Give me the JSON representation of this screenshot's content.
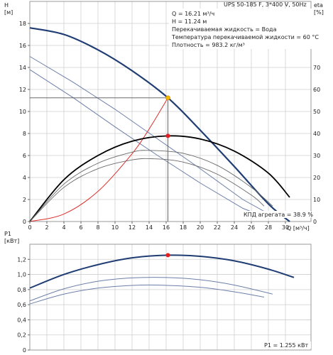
{
  "colors": {
    "pump_curve": "#1f3d73",
    "reduced_curve": "#6d7fa8",
    "system_curve": "#e03030",
    "efficiency_curve": "#000000",
    "efficiency_reduced": "#6a6a6a",
    "duty_point_head": "#f5b800",
    "duty_point": "#e02020",
    "grid": "#cfcfcf",
    "crosshair": "#555555"
  },
  "chart_data": [
    {
      "type": "line",
      "title": "UPS 50-185 F, 3*400 V, 50Hz",
      "xlabel": "Q [м³/ч]",
      "ylabel": "H [м]",
      "y2label": "eta [%]",
      "xlim": [
        0,
        33
      ],
      "ylim": [
        0,
        20
      ],
      "y2lim": [
        0,
        100
      ],
      "x_ticks": [
        0,
        2,
        4,
        6,
        8,
        10,
        12,
        14,
        16,
        18,
        20,
        22,
        24,
        26,
        28,
        30
      ],
      "y_ticks": [
        0,
        2,
        4,
        6,
        8,
        10,
        12,
        14,
        16,
        18
      ],
      "y2_ticks": [
        0,
        10,
        20,
        30,
        40,
        50,
        60,
        70
      ],
      "grid": true,
      "info": [
        "Q = 16.21 м³/ч",
        "H = 11.24 м",
        "Перекачиваемая жидкость = Вода",
        "Температура перекачиваемой жидкости = 60 °C",
        "Плотность = 983.2 кг/м³"
      ],
      "efficiency_annotation": "КПД агрегата = 38.9 %",
      "duty_point": {
        "q": 16.21,
        "h": 11.24,
        "eta": 38.9
      },
      "series": [
        {
          "role": "head_speed3",
          "x": [
            0,
            4,
            8,
            12,
            16.21,
            20,
            24,
            28,
            30.5
          ],
          "y": [
            17.6,
            17.0,
            15.6,
            13.7,
            11.24,
            8.3,
            5.0,
            1.6,
            0
          ]
        },
        {
          "role": "head_speed2",
          "x": [
            0,
            5,
            10,
            15,
            20,
            25,
            28.5
          ],
          "y": [
            15.0,
            12.7,
            10.2,
            7.5,
            4.8,
            2.0,
            0.5
          ]
        },
        {
          "role": "head_speed1",
          "x": [
            0,
            5,
            10,
            15,
            20,
            25,
            27.3
          ],
          "y": [
            13.8,
            11.3,
            8.6,
            6.0,
            3.5,
            1.2,
            0.5
          ]
        },
        {
          "role": "system_curve",
          "x": [
            0,
            4,
            8,
            12,
            14,
            16.21
          ],
          "y": [
            0,
            0.68,
            2.74,
            6.16,
            8.4,
            11.24
          ]
        },
        {
          "role": "eta_speed3",
          "axis": "y2",
          "x": [
            0,
            4,
            8,
            12,
            16.21,
            20,
            24,
            28,
            30.5
          ],
          "y": [
            0,
            19,
            30,
            36.5,
            38.9,
            37.5,
            32,
            22,
            11
          ]
        },
        {
          "role": "eta_speed2",
          "axis": "y2",
          "x": [
            0,
            4,
            8,
            12,
            14,
            18,
            22,
            26,
            28.5
          ],
          "y": [
            0,
            17,
            26.5,
            31.5,
            32.3,
            31,
            25.5,
            15.5,
            7
          ]
        },
        {
          "role": "eta_speed1",
          "axis": "y2",
          "x": [
            0,
            4,
            8,
            12,
            14.5,
            18,
            22,
            26,
            27.5
          ],
          "y": [
            0,
            15.5,
            24,
            28,
            28.5,
            27,
            21.5,
            12,
            7
          ]
        }
      ]
    },
    {
      "type": "line",
      "xlabel": "",
      "ylabel": "P1 [кВт]",
      "xlim": [
        0,
        33
      ],
      "ylim": [
        0,
        1.4
      ],
      "y_ticks": [
        0,
        0.2,
        0.4,
        0.6,
        0.8,
        1.0,
        1.2
      ],
      "y_tick_labels": [
        "0",
        "0,2",
        "0,4",
        "0,6",
        "0,8",
        "1,0",
        "1,2"
      ],
      "grid": true,
      "power_annotation": "P1 = 1.255 кВт",
      "duty_point": {
        "q": 16.21,
        "p1": 1.255
      },
      "series": [
        {
          "role": "p1_speed3",
          "x": [
            0,
            4,
            8,
            12,
            16.21,
            20,
            24,
            28,
            31
          ],
          "y": [
            0.82,
            1.0,
            1.13,
            1.22,
            1.255,
            1.24,
            1.18,
            1.07,
            0.96
          ]
        },
        {
          "role": "p1_speed2",
          "x": [
            0,
            4,
            8,
            12,
            16,
            20,
            24,
            28.5
          ],
          "y": [
            0.65,
            0.81,
            0.91,
            0.955,
            0.96,
            0.93,
            0.86,
            0.74
          ]
        },
        {
          "role": "p1_speed1",
          "x": [
            0,
            4,
            8,
            12,
            15,
            20,
            24,
            27.5
          ],
          "y": [
            0.61,
            0.74,
            0.82,
            0.855,
            0.86,
            0.83,
            0.77,
            0.7
          ]
        }
      ]
    }
  ]
}
